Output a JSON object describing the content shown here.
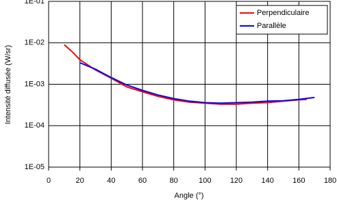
{
  "chart_data": {
    "type": "line",
    "x_label": "Angle (°)",
    "y_label": "Intensité diffusée (W/sr)",
    "log_y": true,
    "grid": true,
    "legend": "top-right",
    "xlim": [
      0,
      180
    ],
    "xticks": [
      0,
      20,
      40,
      60,
      80,
      100,
      120,
      140,
      160,
      180
    ],
    "ylim": [
      1e-05,
      0.1
    ],
    "yticks": [
      {
        "value": 1e-05,
        "label": "1E-05"
      },
      {
        "value": 0.0001,
        "label": "1E-04"
      },
      {
        "value": 0.001,
        "label": "1E-03"
      },
      {
        "value": 0.01,
        "label": "1E-02"
      },
      {
        "value": 0.1,
        "label": "1E-01"
      }
    ],
    "series": [
      {
        "name": "Perpendiculaire",
        "color": "#ff0000",
        "x": [
          10,
          15,
          20,
          30,
          40,
          50,
          60,
          70,
          80,
          90,
          100,
          110,
          120,
          130,
          140,
          150,
          160,
          165
        ],
        "values": [
          0.009,
          0.0061,
          0.0039,
          0.0022,
          0.0014,
          0.00086,
          0.00066,
          0.00051,
          0.00042,
          0.00037,
          0.00035,
          0.00033,
          0.00033,
          0.00035,
          0.00036,
          0.00039,
          0.00042,
          0.00043
        ]
      },
      {
        "name": "Parallèle",
        "color": "#0000ff",
        "x": [
          20,
          30,
          40,
          50,
          60,
          70,
          80,
          90,
          100,
          110,
          120,
          130,
          140,
          150,
          160,
          170
        ],
        "values": [
          0.0033,
          0.0023,
          0.00145,
          0.00096,
          0.00071,
          0.00055,
          0.00045,
          0.00039,
          0.00036,
          0.00035,
          0.00036,
          0.00037,
          0.00039,
          0.0004,
          0.00043,
          0.00048
        ]
      }
    ]
  }
}
